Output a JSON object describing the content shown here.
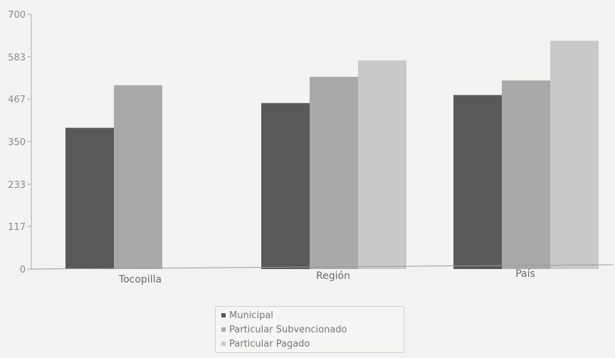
{
  "chart_data": {
    "type": "bar",
    "title": "",
    "xlabel": "",
    "ylabel": "",
    "categories": [
      "Tocopilla",
      "Región",
      "País"
    ],
    "ylim": [
      0,
      700
    ],
    "yticks": [
      "0",
      "117",
      "233",
      "350",
      "467",
      "583",
      "700"
    ],
    "series": [
      {
        "name": "Municipal",
        "color": "#595959",
        "values": [
          388,
          456,
          478
        ]
      },
      {
        "name": "Particular Subvencionado",
        "color": "#a9a9a9",
        "values": [
          505,
          528,
          518
        ]
      },
      {
        "name": "Particular Pagado",
        "color": "#c9c9c9",
        "values": [
          null,
          573,
          627
        ]
      }
    ],
    "grid": false,
    "legend_position": "bottom-center"
  }
}
